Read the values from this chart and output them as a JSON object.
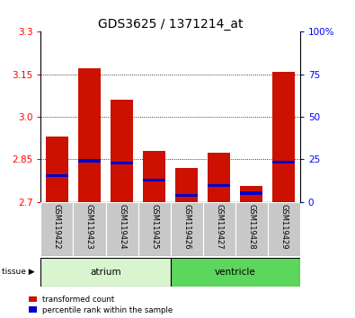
{
  "title": "GDS3625 / 1371214_at",
  "samples": [
    "GSM119422",
    "GSM119423",
    "GSM119424",
    "GSM119425",
    "GSM119426",
    "GSM119427",
    "GSM119428",
    "GSM119429"
  ],
  "red_tops": [
    2.93,
    3.17,
    3.06,
    2.88,
    2.82,
    2.875,
    2.755,
    3.16
  ],
  "blue_tops": [
    2.792,
    2.845,
    2.836,
    2.776,
    2.722,
    2.757,
    2.731,
    2.84
  ],
  "baseline": 2.7,
  "ylim_left": [
    2.7,
    3.3
  ],
  "ylim_right": [
    0,
    100
  ],
  "left_ticks": [
    2.7,
    2.85,
    3.0,
    3.15,
    3.3
  ],
  "right_ticks": [
    0,
    25,
    50,
    75,
    100
  ],
  "right_tick_labels": [
    "0",
    "25",
    "50",
    "75",
    "100%"
  ],
  "grid_lines": [
    2.85,
    3.0,
    3.15
  ],
  "groups": [
    {
      "label": "atrium",
      "start": 0,
      "end": 3,
      "color": "#d8f5d0"
    },
    {
      "label": "ventricle",
      "start": 4,
      "end": 7,
      "color": "#5cd65c"
    }
  ],
  "bar_color_red": "#cc1100",
  "bar_color_blue": "#0000cc",
  "legend_red": "transformed count",
  "legend_blue": "percentile rank within the sample",
  "bar_width": 0.7,
  "title_fontsize": 10,
  "tick_fontsize": 7.5,
  "sample_fontsize": 6.0
}
